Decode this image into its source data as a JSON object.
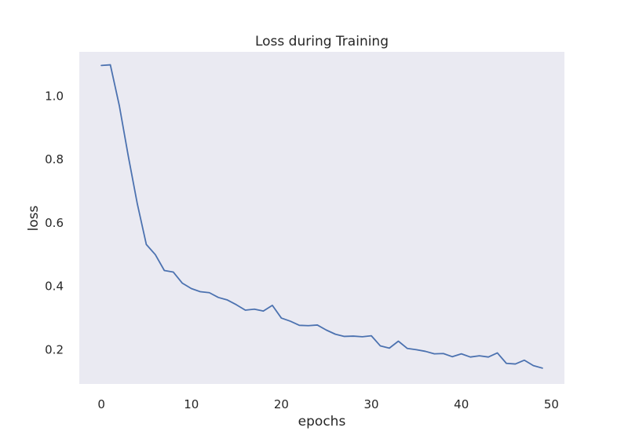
{
  "chart_data": {
    "type": "line",
    "title": "Loss during Training",
    "xlabel": "epochs",
    "ylabel": "loss",
    "xlim": [
      -2.45,
      51.45
    ],
    "ylim": [
      0.092,
      1.14
    ],
    "xticks": [
      0,
      10,
      20,
      30,
      40,
      50
    ],
    "yticks": [
      0.2,
      0.4,
      0.6,
      0.8,
      1.0
    ],
    "xtick_labels": [
      "0",
      "10",
      "20",
      "30",
      "40",
      "50"
    ],
    "ytick_labels": [
      "0.2",
      "0.4",
      "0.6",
      "0.8",
      "1.0"
    ],
    "grid": false,
    "legend": "none",
    "colors": {
      "plot_background": "#eaeaf2",
      "line": "#4c72b0",
      "text": "#262626"
    },
    "series": [
      {
        "x": [
          0,
          1,
          2,
          3,
          4,
          5,
          6,
          7,
          8,
          9,
          10,
          11,
          12,
          13,
          14,
          15,
          16,
          17,
          18,
          19,
          20,
          21,
          22,
          23,
          24,
          25,
          26,
          27,
          28,
          29,
          30,
          31,
          32,
          33,
          34,
          35,
          36,
          37,
          38,
          39,
          40,
          41,
          42,
          43,
          44,
          45,
          46,
          47,
          48,
          49
        ],
        "y": [
          1.097,
          1.099,
          0.97,
          0.81,
          0.66,
          0.532,
          0.5,
          0.45,
          0.445,
          0.41,
          0.393,
          0.383,
          0.38,
          0.365,
          0.357,
          0.342,
          0.325,
          0.328,
          0.322,
          0.34,
          0.3,
          0.29,
          0.277,
          0.276,
          0.278,
          0.262,
          0.249,
          0.242,
          0.243,
          0.241,
          0.244,
          0.212,
          0.205,
          0.227,
          0.204,
          0.2,
          0.195,
          0.187,
          0.188,
          0.178,
          0.187,
          0.177,
          0.181,
          0.177,
          0.19,
          0.157,
          0.155,
          0.167,
          0.15,
          0.142
        ]
      }
    ]
  }
}
